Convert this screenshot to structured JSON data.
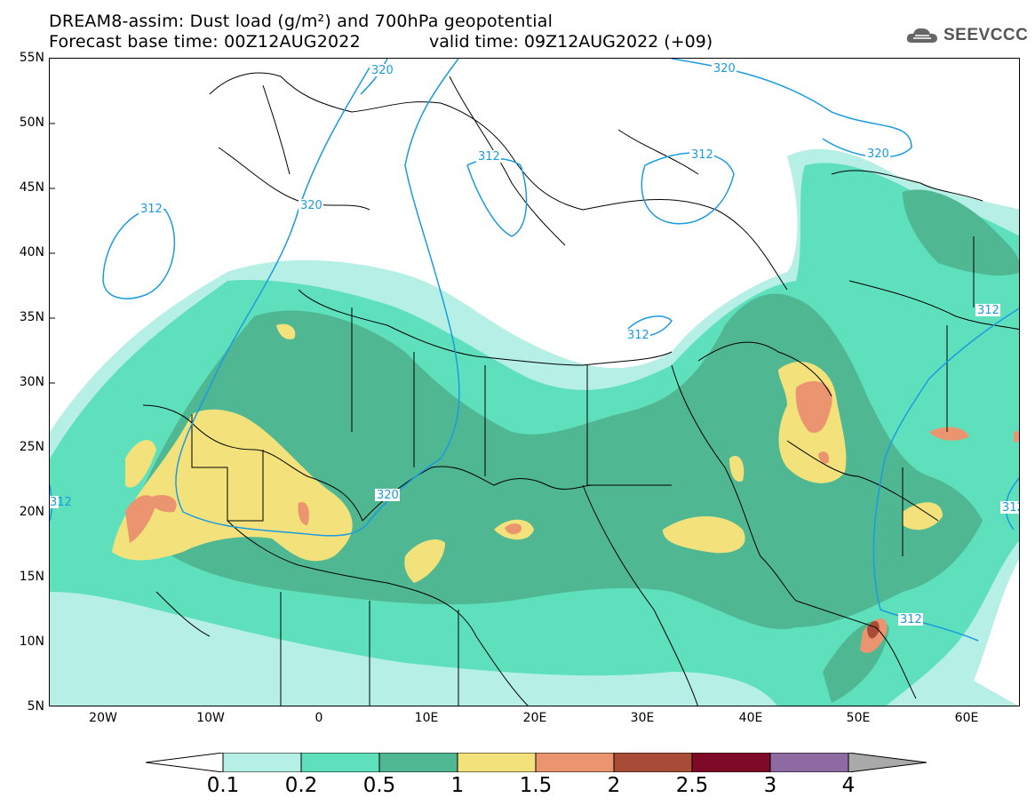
{
  "header": {
    "title_line1": "DREAM8-assim: Dust load (g/m²) and 700hPa geopotential",
    "title_line2": "Forecast base time: 00Z12AUG2022",
    "valid_time": "valid time: 09Z12AUG2022 (+09)",
    "brand": "SEEVCCC"
  },
  "map": {
    "lat_labels": [
      "55N",
      "50N",
      "45N",
      "40N",
      "35N",
      "30N",
      "25N",
      "20N",
      "15N",
      "10N",
      "5N"
    ],
    "lon_labels": [
      "20W",
      "10W",
      "0",
      "10E",
      "20E",
      "30E",
      "40E",
      "50E",
      "60E"
    ],
    "contour_labels": [
      "320",
      "312",
      "320",
      "312",
      "312",
      "320",
      "312",
      "312",
      "320",
      "320",
      "312",
      "312",
      "312"
    ]
  },
  "colorbar": {
    "colors": [
      "#b6efe5",
      "#5fe0bc",
      "#4fb892",
      "#f3e27b",
      "#ea9470",
      "#a84c38",
      "#7f0a27",
      "#8e6aa2"
    ],
    "over_color": "#a9a9a9",
    "labels": [
      "0.1",
      "0.2",
      "0.5",
      "1",
      "1.5",
      "2",
      "2.5",
      "3",
      "4"
    ]
  }
}
